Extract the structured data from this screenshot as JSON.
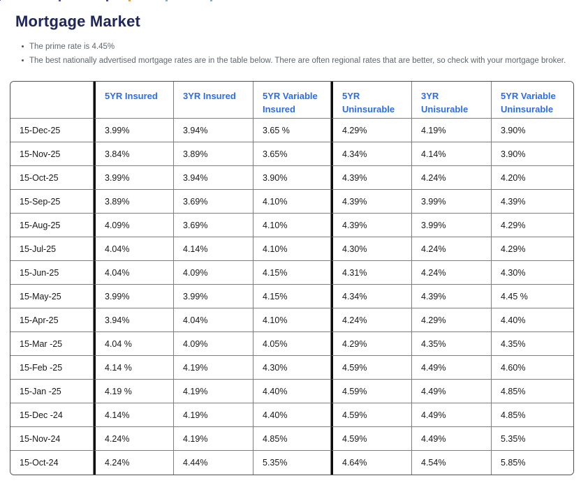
{
  "header": {
    "title": "Mortgage Market"
  },
  "notes": [
    "The prime rate is 4.45%",
    "The best nationally advertised mortgage rates are in the table below. There are often regional rates that are better, so check with your mortgage broker."
  ],
  "colors": {
    "title_text": "#20265a",
    "column_header_text": "#2b6cec",
    "cell_text": "#17181a",
    "note_text": "#5f666d",
    "grid_border": "#7e7e7e",
    "thick_divider": "#0b0b0b"
  },
  "table": {
    "columns": [
      "",
      "5YR Insured",
      "3YR Insured",
      "5YR Variable Insured",
      "5YR Uninsurable",
      "3YR Unisurable",
      "5YR Variable Uninsurable"
    ],
    "rows": [
      {
        "date": "15-Dec-25",
        "values": [
          "3.99%",
          "3.94%",
          "3.65 %",
          "4.29%",
          "4.19%",
          "3.90%"
        ]
      },
      {
        "date": "15-Nov-25",
        "values": [
          "3.84%",
          "3.89%",
          "3.65%",
          "4.34%",
          "4.14%",
          "3.90%"
        ]
      },
      {
        "date": "15-Oct-25",
        "values": [
          "3.99%",
          "3.94%",
          "3.90%",
          "4.39%",
          "4.24%",
          "4.20%"
        ]
      },
      {
        "date": "15-Sep-25",
        "values": [
          "3.89%",
          "3.69%",
          "4.10%",
          "4.39%",
          "3.99%",
          "4.39%"
        ]
      },
      {
        "date": "15-Aug-25",
        "values": [
          "4.09%",
          "3.69%",
          "4.10%",
          "4.39%",
          "3.99%",
          "4.29%"
        ]
      },
      {
        "date": "15-Jul-25",
        "values": [
          "4.04%",
          "4.14%",
          "4.10%",
          "4.30%",
          "4.24%",
          "4.29%"
        ]
      },
      {
        "date": "15-Jun-25",
        "values": [
          "4.04%",
          "4.09%",
          "4.15%",
          "4.31%",
          "4.24%",
          "4.30%"
        ]
      },
      {
        "date": "15-May-25",
        "values": [
          "3.99%",
          "3.99%",
          "4.15%",
          "4.34%",
          "4.39%",
          "4.45 %"
        ]
      },
      {
        "date": "15-Apr-25",
        "values": [
          "3.94%",
          "4.04%",
          "4.10%",
          "4.24%",
          "4.29%",
          "4.40%"
        ]
      },
      {
        "date": "15-Mar -25",
        "values": [
          "4.04 %",
          "4.09%",
          "4.05%",
          "4.29%",
          "4.35%",
          "4.35%"
        ]
      },
      {
        "date": "15-Feb -25",
        "values": [
          "4.14 %",
          "4.19%",
          "4.30%",
          "4.59%",
          "4.49%",
          "4.60%"
        ]
      },
      {
        "date": "15-Jan -25",
        "values": [
          "4.19 %",
          "4.19%",
          "4.40%",
          "4.59%",
          "4.49%",
          "4.85%"
        ]
      },
      {
        "date": "15-Dec -24",
        "values": [
          "4.14%",
          "4.19%",
          "4.40%",
          "4.59%",
          "4.49%",
          "4.85%"
        ]
      },
      {
        "date": "15-Nov-24",
        "values": [
          "4.24%",
          "4.19%",
          "4.85%",
          "4.59%",
          "4.49%",
          "5.35%"
        ]
      },
      {
        "date": "15-Oct-24",
        "values": [
          "4.24%",
          "4.44%",
          "5.35%",
          "4.64%",
          "4.54%",
          "5.85%"
        ]
      }
    ]
  }
}
